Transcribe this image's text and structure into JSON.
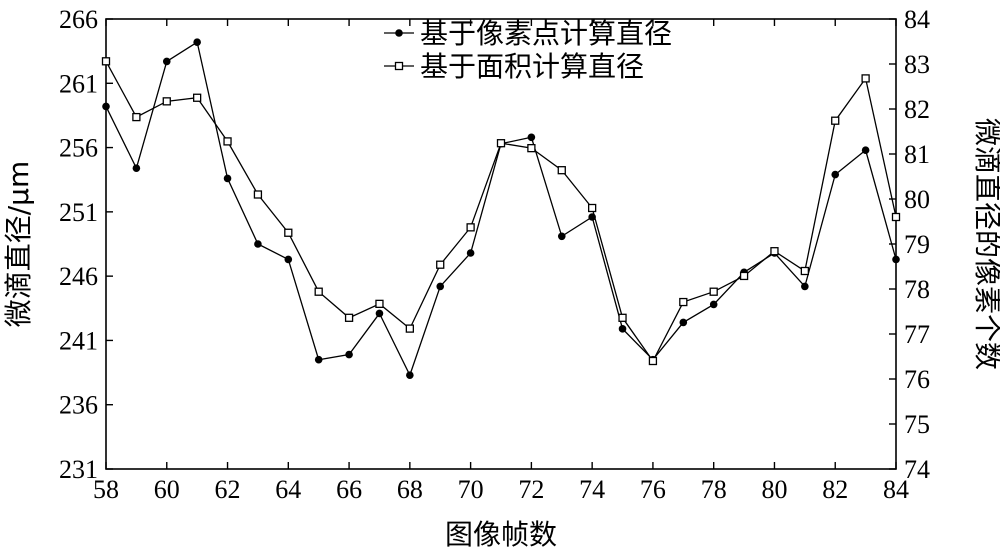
{
  "chart_data": {
    "type": "line",
    "title": "",
    "xlabel": "图像帧数",
    "ylabel": "微滴直径/μm",
    "y2label": "微滴直径的像素个数",
    "xlim": [
      58,
      84
    ],
    "ylim": [
      231,
      266
    ],
    "y2lim": [
      74,
      84
    ],
    "x_ticks": [
      58,
      60,
      62,
      64,
      66,
      68,
      70,
      72,
      74,
      76,
      78,
      80,
      82,
      84
    ],
    "y_ticks": [
      231,
      236,
      241,
      246,
      251,
      256,
      261,
      266
    ],
    "y2_ticks": [
      74,
      75,
      76,
      77,
      78,
      79,
      80,
      81,
      82,
      83,
      84
    ],
    "grid": false,
    "legend_position": "top-center",
    "x": [
      58,
      59,
      60,
      61,
      62,
      63,
      64,
      65,
      66,
      67,
      68,
      69,
      70,
      71,
      72,
      73,
      74,
      75,
      76,
      77,
      78,
      79,
      80,
      81,
      82,
      83,
      84
    ],
    "series": [
      {
        "name": "基于像素点计算直径",
        "axis": "left",
        "marker": "filled-circle",
        "values": [
          259.2,
          254.4,
          262.7,
          264.2,
          253.6,
          248.5,
          247.3,
          239.5,
          239.9,
          243.1,
          238.3,
          245.2,
          247.8,
          256.3,
          256.8,
          249.1,
          250.6,
          241.9,
          239.5,
          242.4,
          243.8,
          246.3,
          247.8,
          245.2,
          253.9,
          255.8,
          247.3
        ]
      },
      {
        "name": "基于面积计算直径",
        "axis": "right",
        "marker": "open-square",
        "values": [
          83.06,
          81.82,
          82.17,
          82.25,
          81.28,
          80.1,
          79.25,
          77.94,
          77.36,
          77.67,
          77.12,
          78.54,
          79.37,
          81.24,
          81.13,
          80.64,
          79.8,
          77.36,
          76.4,
          77.71,
          77.94,
          78.29,
          78.84,
          78.4,
          81.74,
          82.68,
          79.6
        ]
      }
    ]
  }
}
